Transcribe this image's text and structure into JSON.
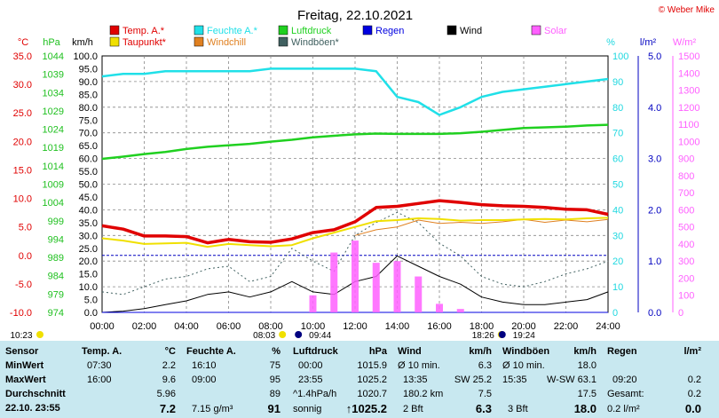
{
  "title": "Freitag, 22.10.2021",
  "copyright": "© Weber Mike",
  "chart_data": {
    "type": "line",
    "x": [
      "00:00",
      "01:00",
      "02:00",
      "03:00",
      "04:00",
      "05:00",
      "06:00",
      "07:00",
      "08:00",
      "09:00",
      "10:00",
      "11:00",
      "12:00",
      "13:00",
      "14:00",
      "15:00",
      "16:00",
      "17:00",
      "18:00",
      "19:00",
      "20:00",
      "21:00",
      "22:00",
      "23:00",
      "24:00"
    ],
    "xticks": [
      "00:00",
      "02:00",
      "04:00",
      "06:00",
      "08:00",
      "10:00",
      "12:00",
      "14:00",
      "16:00",
      "18:00",
      "20:00",
      "22:00",
      "24:00"
    ],
    "axes": {
      "temp": {
        "unit": "°C",
        "range": [
          -10,
          35
        ],
        "ticks": [
          "35.0",
          "30.0",
          "25.0",
          "20.0",
          "15.0",
          "10.0",
          "5.0",
          "0.0",
          "-5.0",
          "-10.0"
        ]
      },
      "pressure": {
        "unit": "hPa",
        "range": [
          974,
          1044
        ],
        "ticks": [
          "1044",
          "1039",
          "1034",
          "1029",
          "1024",
          "1019",
          "1014",
          "1009",
          "1004",
          "999",
          "994",
          "989",
          "984",
          "979",
          "974"
        ]
      },
      "wind": {
        "unit": "km/h",
        "range": [
          0,
          100
        ],
        "ticks": [
          "100.0",
          "95.0",
          "90.0",
          "85.0",
          "80.0",
          "75.0",
          "70.0",
          "65.0",
          "60.0",
          "55.0",
          "50.0",
          "45.0",
          "40.0",
          "35.0",
          "30.0",
          "25.0",
          "20.0",
          "15.0",
          "10.0",
          "5.0",
          "0.0"
        ]
      },
      "humidity": {
        "unit": "%",
        "range": [
          0,
          100
        ],
        "ticks": [
          "100",
          "90",
          "80",
          "70",
          "60",
          "50",
          "40",
          "30",
          "20",
          "10",
          "0"
        ]
      },
      "rain": {
        "unit": "l/m²",
        "range": [
          0,
          5
        ],
        "ticks": [
          "5.0",
          "4.0",
          "3.0",
          "2.0",
          "1.0",
          "0.0"
        ]
      },
      "solar": {
        "unit": "W/m²",
        "range": [
          0,
          1500
        ],
        "ticks": [
          "1500",
          "1400",
          "1300",
          "1200",
          "1100",
          "1000",
          "900",
          "800",
          "700",
          "600",
          "500",
          "400",
          "300",
          "200",
          "100",
          "0"
        ]
      }
    },
    "legend": [
      {
        "name": "Temp. A.*",
        "color": "#e00000"
      },
      {
        "name": "Feuchte A.*",
        "color": "#20e0e8"
      },
      {
        "name": "Luftdruck",
        "color": "#20d020"
      },
      {
        "name": "Regen",
        "color": "#0000e0"
      },
      {
        "name": "Wind",
        "color": "#000000"
      },
      {
        "name": "Solar",
        "color": "#ff60ff"
      },
      {
        "name": "Taupunkt*",
        "color": "#f0e000"
      },
      {
        "name": "Windchill",
        "color": "#e08020"
      },
      {
        "name": "Windböen*",
        "color": "#406060"
      }
    ],
    "series": [
      {
        "name": "Temp. A.*",
        "axis": "temp",
        "values": [
          5.2,
          4.6,
          3.4,
          3.4,
          3.3,
          2.2,
          2.8,
          2.4,
          2.3,
          2.9,
          4.0,
          4.5,
          5.9,
          8.4,
          8.6,
          9.1,
          9.6,
          9.3,
          8.9,
          8.7,
          8.6,
          8.4,
          8.1,
          8.0,
          7.2
        ]
      },
      {
        "name": "Taupunkt*",
        "axis": "temp",
        "values": [
          3.0,
          2.6,
          2.0,
          2.1,
          2.2,
          1.5,
          2.0,
          1.8,
          1.6,
          1.8,
          3.0,
          4.0,
          5.0,
          6.0,
          6.2,
          6.5,
          6.4,
          6.1,
          6.2,
          6.2,
          6.3,
          6.4,
          6.3,
          6.5,
          6.6
        ]
      },
      {
        "name": "Feuchte A.*",
        "axis": "humidity",
        "values": [
          92,
          93,
          93,
          94,
          94,
          94,
          94,
          94,
          95,
          95,
          95,
          95,
          95,
          94,
          84,
          82,
          77,
          80,
          84,
          86,
          87,
          88,
          89,
          90,
          91
        ]
      },
      {
        "name": "Luftdruck",
        "axis": "pressure",
        "values": [
          1015.9,
          1016.5,
          1017.2,
          1017.8,
          1018.6,
          1019.2,
          1019.6,
          1020.0,
          1020.6,
          1021.1,
          1021.8,
          1022.2,
          1022.6,
          1022.8,
          1022.7,
          1022.7,
          1022.7,
          1022.9,
          1023.3,
          1023.8,
          1024.3,
          1024.5,
          1024.7,
          1025.0,
          1025.2
        ]
      },
      {
        "name": "Wind",
        "axis": "wind",
        "values": [
          0,
          0.5,
          1.5,
          3,
          4.5,
          7,
          8,
          6,
          8,
          12,
          8,
          7,
          12,
          14,
          22,
          18,
          14,
          11,
          6,
          4,
          3,
          3,
          4,
          5,
          8
        ]
      },
      {
        "name": "Windböen*",
        "axis": "wind",
        "values": [
          8,
          7,
          10,
          13,
          14,
          17,
          18,
          12,
          14,
          25,
          20,
          16,
          30,
          35,
          39,
          35,
          27,
          22,
          14,
          11,
          10,
          12,
          15,
          17,
          20
        ]
      },
      {
        "name": "Windchill",
        "axis": "temp",
        "values": [
          null,
          null,
          null,
          null,
          null,
          null,
          null,
          null,
          null,
          null,
          null,
          null,
          3.5,
          4.5,
          5.0,
          6.2,
          5.6,
          5.8,
          5.6,
          5.9,
          6.3,
          5.8,
          6.2,
          5.9,
          6.3
        ]
      },
      {
        "name": "Solar",
        "axis": "solar",
        "values": [
          0,
          0,
          0,
          0,
          0,
          0,
          0,
          0,
          0,
          0,
          100,
          350,
          420,
          290,
          300,
          210,
          50,
          20,
          0,
          0,
          0,
          0,
          0,
          0,
          0
        ]
      },
      {
        "name": "Regen",
        "axis": "rain",
        "values": [
          0,
          0,
          0,
          0,
          0,
          0,
          0,
          0,
          0,
          0,
          0,
          0,
          0,
          0,
          0,
          0,
          0,
          0,
          0,
          0,
          0,
          0,
          0,
          0,
          0
        ]
      }
    ],
    "events": [
      {
        "label": "10:23",
        "time": "10:23",
        "kind": "moonrise"
      },
      {
        "label": "08:03",
        "time": "08:03",
        "kind": "sunrise"
      },
      {
        "label": "09:44",
        "time": "09:44",
        "kind": "moonphase"
      },
      {
        "label": "18:26",
        "time": "18:26",
        "kind": "sunset"
      },
      {
        "label": "19:24",
        "time": "19:24",
        "kind": "moonset"
      }
    ]
  },
  "stats": {
    "rows": [
      "Sensor",
      "MinWert",
      "MaxWert",
      "Durchschnitt",
      "22.10. 23:55"
    ],
    "temp": {
      "head": "Temp. A.",
      "unit": "°C",
      "min_time": "07:30",
      "min": "2.2",
      "max_time": "16:00",
      "max": "9.6",
      "avg": "5.96",
      "cur": "7.2"
    },
    "hum": {
      "head": "Feuchte A.",
      "unit": "%",
      "min_time": "16:10",
      "min": "75",
      "max_time": "09:00",
      "max": "95",
      "avg": "89",
      "cur_extra": "7.15 g/m³",
      "cur": "91"
    },
    "press": {
      "head": "Luftdruck",
      "unit": "hPa",
      "min_time": "00:00",
      "min": "1015.9",
      "max_time": "23:55",
      "max": "1025.2",
      "trend": "^1.4hPa/h",
      "avg": "1020.7",
      "state": "sonnig",
      "cur": "↑1025.2"
    },
    "wind": {
      "head": "Wind",
      "unit": "km/h",
      "r1a": "Ø 10 min.",
      "r1b": "6.3",
      "r2a": "13:35",
      "r2b": "SW 25.2",
      "r3a": "180.2 km",
      "r3b": "7.5",
      "r4a": "2 Bft",
      "r4b": "6.3"
    },
    "gust": {
      "head": "Windböen",
      "unit": "km/h",
      "r1a": "Ø 10 min.",
      "r1b": "18.0",
      "r2a": "15:35",
      "r2b": "W-SW 63.1",
      "r3b": "17.5",
      "r4a": "3 Bft",
      "r4b": "18.0"
    },
    "rain": {
      "head": "Regen",
      "unit": "l/m²",
      "r2a": "09:20",
      "r2b": "0.2",
      "r3a": "Gesamt:",
      "r3b": "0.2",
      "r4a": "0.2 l/m²",
      "r4b": "0.0"
    }
  }
}
